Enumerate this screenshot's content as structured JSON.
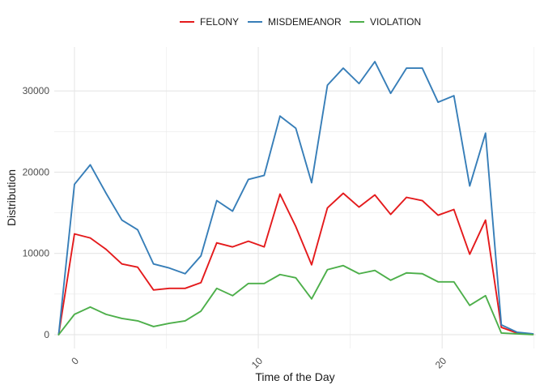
{
  "chart_data": {
    "type": "line",
    "title": "",
    "xlabel": "Time of the Day",
    "ylabel": "Distribution",
    "xlim": [
      -1.1,
      25.1
    ],
    "ylim": [
      -1700,
      35400
    ],
    "x_ticks": [
      0,
      10,
      20
    ],
    "x_tick_labels": [
      "0",
      "10",
      "20"
    ],
    "y_ticks": [
      0,
      10000,
      20000,
      30000
    ],
    "y_tick_labels": [
      "0",
      "10000",
      "20000",
      "30000"
    ],
    "grid": true,
    "legend_position": "top",
    "x": [
      -0.86,
      0,
      0.86,
      1.72,
      2.58,
      3.44,
      4.3,
      5.16,
      6.02,
      6.88,
      7.74,
      8.6,
      9.46,
      10.32,
      11.18,
      12.04,
      12.9,
      13.76,
      14.62,
      15.48,
      16.34,
      17.2,
      18.06,
      18.92,
      19.78,
      20.64,
      21.5,
      22.36,
      23.22,
      24.08,
      24.94
    ],
    "series": [
      {
        "name": "FELONY",
        "color": "#e41a1c",
        "values": [
          0,
          12400,
          11900,
          10500,
          8700,
          8300,
          5500,
          5700,
          5700,
          6400,
          11300,
          10800,
          11500,
          10800,
          17300,
          13300,
          8600,
          15600,
          17400,
          15700,
          17200,
          14800,
          16900,
          16500,
          14700,
          15400,
          9900,
          14100,
          900,
          200,
          50
        ]
      },
      {
        "name": "MISDEMEANOR",
        "color": "#377eb8",
        "values": [
          0,
          18500,
          20900,
          17400,
          14100,
          12900,
          8700,
          8200,
          7500,
          9700,
          16500,
          15200,
          19100,
          19600,
          26900,
          25400,
          18700,
          30700,
          32800,
          30900,
          33600,
          29700,
          32800,
          32800,
          28600,
          29400,
          18300,
          24800,
          1200,
          300,
          100
        ]
      },
      {
        "name": "VIOLATION",
        "color": "#4daf4a",
        "values": [
          0,
          2500,
          3400,
          2500,
          2000,
          1700,
          1000,
          1400,
          1700,
          2900,
          5700,
          4800,
          6300,
          6300,
          7400,
          7000,
          4400,
          8000,
          8500,
          7500,
          7900,
          6700,
          7600,
          7500,
          6500,
          6500,
          3600,
          4800,
          200,
          100,
          0
        ]
      }
    ]
  }
}
